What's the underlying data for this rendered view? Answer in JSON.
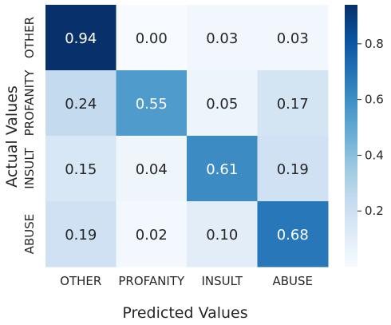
{
  "chart_data": {
    "type": "heatmap",
    "xlabel": "Predicted Values",
    "ylabel": "Actual Values",
    "x_categories": [
      "OTHER",
      "PROFANITY",
      "INSULT",
      "ABUSE"
    ],
    "y_categories": [
      "OTHER",
      "PROFANITY",
      "INSULT",
      "ABUSE"
    ],
    "values": [
      [
        0.94,
        0.0,
        0.03,
        0.03
      ],
      [
        0.24,
        0.55,
        0.05,
        0.17
      ],
      [
        0.15,
        0.04,
        0.61,
        0.19
      ],
      [
        0.19,
        0.02,
        0.1,
        0.68
      ]
    ],
    "value_format": "0.00",
    "colormap": "Blues",
    "color_range": [
      0.0,
      0.94
    ],
    "colorbar_ticks": [
      0.2,
      0.4,
      0.6,
      0.8
    ],
    "grid": false,
    "colorbar_position": "right"
  }
}
